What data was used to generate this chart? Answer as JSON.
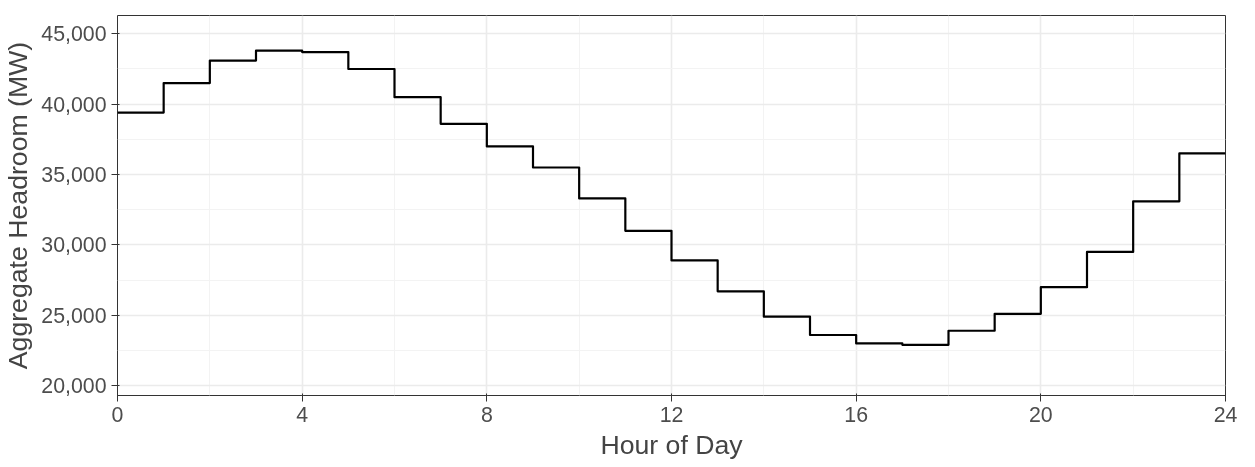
{
  "chart_data": {
    "type": "step",
    "xlabel": "Hour of Day",
    "ylabel": "Aggregate Headroom (MW)",
    "x": [
      0,
      1,
      2,
      3,
      4,
      5,
      6,
      7,
      8,
      9,
      10,
      11,
      12,
      13,
      14,
      15,
      16,
      17,
      18,
      19,
      20,
      21,
      22,
      23,
      24
    ],
    "series": [
      {
        "color": "#000000",
        "values": [
          39400,
          41500,
          43100,
          43800,
          43700,
          42500,
          40500,
          38600,
          37000,
          35500,
          33300,
          31000,
          28900,
          26700,
          24900,
          23600,
          23000,
          22900,
          23900,
          25100,
          27000,
          29500,
          33100,
          36500,
          36500
        ]
      }
    ],
    "xlim": [
      0,
      24
    ],
    "xticks": [
      0,
      4,
      8,
      12,
      16,
      20,
      24
    ],
    "ylim": [
      19300,
      46300
    ],
    "yticks": [
      {
        "value": 20000,
        "label": "20,000"
      },
      {
        "value": 25000,
        "label": "25,000"
      },
      {
        "value": 30000,
        "label": "30,000"
      },
      {
        "value": 35000,
        "label": "35,000"
      },
      {
        "value": 40000,
        "label": "40,000"
      },
      {
        "value": 45000,
        "label": "45,000"
      }
    ],
    "grid": true
  }
}
